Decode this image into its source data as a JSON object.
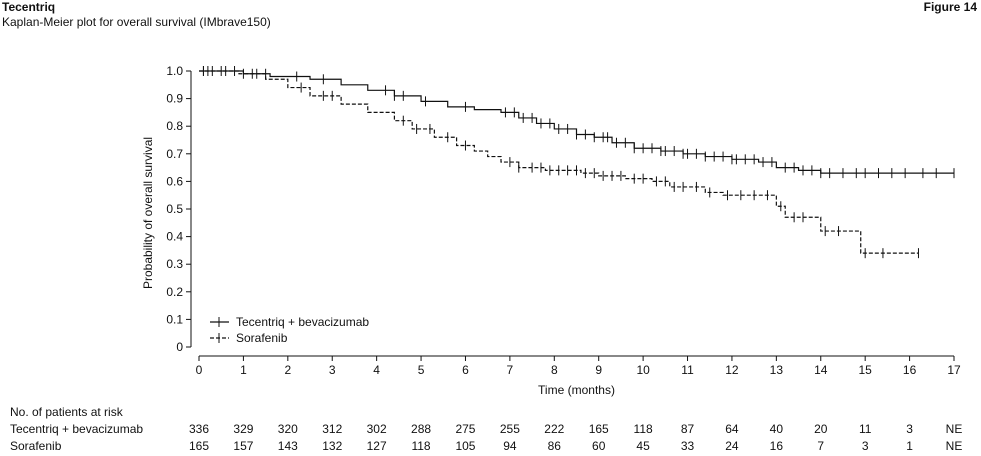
{
  "header": {
    "brand": "Tecentriq",
    "subtitle": "Kaplan-Meier plot for overall survival (IMbrave150)",
    "figure_label": "Figure 14"
  },
  "chart_data": {
    "type": "line",
    "title": "Kaplan-Meier plot for overall survival (IMbrave150)",
    "xlabel": "Time (months)",
    "ylabel": "Probability of overall survival",
    "xlim": [
      0,
      17
    ],
    "ylim": [
      0,
      1.0
    ],
    "x_ticks": [
      0,
      1,
      2,
      3,
      4,
      5,
      6,
      7,
      8,
      9,
      10,
      11,
      12,
      13,
      14,
      15,
      16,
      17
    ],
    "y_ticks": [
      0,
      0.1,
      0.2,
      0.3,
      0.4,
      0.5,
      0.6,
      0.7,
      0.8,
      0.9,
      1.0
    ],
    "y_tick_labels": [
      "0",
      "0.1",
      "0.2",
      "0.3",
      "0.4",
      "0.5",
      "0.6",
      "0.7",
      "0.8",
      "0.9",
      "1.0"
    ],
    "grid": false,
    "legend_position": "bottom-left",
    "series": [
      {
        "name": "Tecentriq + bevacizumab",
        "line_style": "solid",
        "color": "#111111",
        "steps": [
          [
            0,
            1.0
          ],
          [
            1.0,
            0.99
          ],
          [
            1.6,
            0.98
          ],
          [
            2.5,
            0.97
          ],
          [
            3.2,
            0.95
          ],
          [
            3.8,
            0.93
          ],
          [
            4.4,
            0.91
          ],
          [
            5.0,
            0.89
          ],
          [
            5.6,
            0.87
          ],
          [
            6.2,
            0.86
          ],
          [
            6.8,
            0.85
          ],
          [
            7.2,
            0.83
          ],
          [
            7.6,
            0.81
          ],
          [
            8.0,
            0.79
          ],
          [
            8.5,
            0.77
          ],
          [
            8.9,
            0.76
          ],
          [
            9.3,
            0.74
          ],
          [
            9.8,
            0.72
          ],
          [
            10.4,
            0.71
          ],
          [
            10.9,
            0.7
          ],
          [
            11.4,
            0.69
          ],
          [
            12.0,
            0.68
          ],
          [
            12.6,
            0.67
          ],
          [
            13.0,
            0.65
          ],
          [
            13.5,
            0.64
          ],
          [
            14.0,
            0.63
          ],
          [
            17.0,
            0.63
          ]
        ],
        "censor_x": [
          0.1,
          0.2,
          0.5,
          0.8,
          1.2,
          1.5,
          2.2,
          2.8,
          4.2,
          4.4,
          4.6,
          5.1,
          6.0,
          6.9,
          7.1,
          7.3,
          7.5,
          7.7,
          7.9,
          8.1,
          8.3,
          8.5,
          8.7,
          8.9,
          9.1,
          9.2,
          9.4,
          9.6,
          9.8,
          10.0,
          10.2,
          10.4,
          10.5,
          10.7,
          10.9,
          11.0,
          11.2,
          11.4,
          11.6,
          11.8,
          12.0,
          12.1,
          12.3,
          12.5,
          12.7,
          12.9,
          13.2,
          13.4,
          13.6,
          13.8,
          14.0,
          14.2,
          14.5,
          14.8,
          15.0,
          15.3,
          15.6,
          15.9,
          16.3,
          16.6,
          17.0
        ]
      },
      {
        "name": "Sorafenib",
        "line_style": "dashed",
        "color": "#111111",
        "steps": [
          [
            0,
            1.0
          ],
          [
            0.9,
            0.99
          ],
          [
            1.5,
            0.97
          ],
          [
            2.0,
            0.94
          ],
          [
            2.5,
            0.91
          ],
          [
            3.2,
            0.88
          ],
          [
            3.8,
            0.85
          ],
          [
            4.4,
            0.82
          ],
          [
            4.8,
            0.79
          ],
          [
            5.3,
            0.76
          ],
          [
            5.8,
            0.73
          ],
          [
            6.2,
            0.71
          ],
          [
            6.5,
            0.69
          ],
          [
            6.8,
            0.67
          ],
          [
            7.2,
            0.65
          ],
          [
            7.8,
            0.64
          ],
          [
            8.6,
            0.63
          ],
          [
            9.0,
            0.62
          ],
          [
            9.6,
            0.61
          ],
          [
            10.2,
            0.6
          ],
          [
            10.6,
            0.58
          ],
          [
            11.4,
            0.56
          ],
          [
            11.8,
            0.55
          ],
          [
            12.3,
            0.55
          ],
          [
            13.0,
            0.51
          ],
          [
            13.2,
            0.47
          ],
          [
            14.0,
            0.42
          ],
          [
            14.9,
            0.34
          ],
          [
            16.2,
            0.34
          ]
        ],
        "censor_x": [
          0.1,
          0.3,
          0.6,
          1.0,
          1.3,
          2.3,
          2.8,
          3.0,
          4.6,
          4.9,
          5.2,
          5.6,
          6.0,
          7.0,
          7.2,
          7.5,
          7.7,
          7.9,
          8.1,
          8.3,
          8.5,
          8.7,
          8.9,
          9.1,
          9.3,
          9.5,
          9.8,
          10.0,
          10.3,
          10.5,
          10.7,
          10.9,
          11.2,
          11.5,
          11.9,
          12.2,
          12.5,
          12.8,
          13.1,
          13.4,
          13.6,
          14.1,
          14.4,
          15.0,
          15.4,
          16.2
        ]
      }
    ]
  },
  "risk_table": {
    "title": "No. of patients at risk",
    "rows": [
      {
        "name": "Tecentriq + bevacizumab",
        "counts": [
          "336",
          "329",
          "320",
          "312",
          "302",
          "288",
          "275",
          "255",
          "222",
          "165",
          "118",
          "87",
          "64",
          "40",
          "20",
          "11",
          "3",
          "NE"
        ]
      },
      {
        "name": "Sorafenib",
        "counts": [
          "165",
          "157",
          "143",
          "132",
          "127",
          "118",
          "105",
          "94",
          "86",
          "60",
          "45",
          "33",
          "24",
          "16",
          "7",
          "3",
          "1",
          "NE"
        ]
      }
    ]
  }
}
